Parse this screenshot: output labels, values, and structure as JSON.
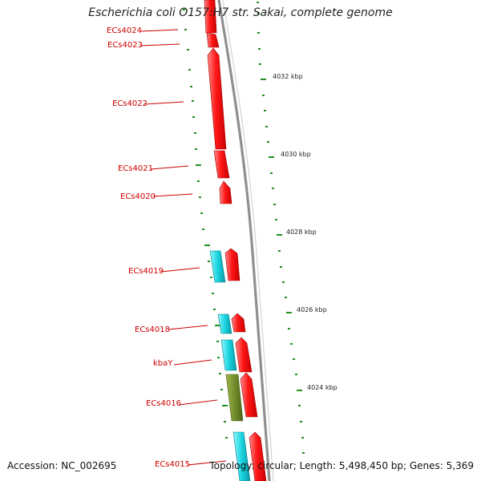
{
  "title": "Escherichia coli O157:H7 str. Sakai, complete genome",
  "footer": {
    "accession": "Accession: NC_002695",
    "topology": "Topology: circular; Length: 5,498,450 bp; Genes: 5,369"
  },
  "colors": {
    "forward_gene": "#ff1414",
    "reverse_gene": "#19d4df",
    "other_feature": "#6f8a2a",
    "label": "#cc0000",
    "tick": "#1f8f1f",
    "backbone": "#8f8f8f"
  },
  "scale_labels": [
    "4032 kbp",
    "4030 kbp",
    "4028 kbp",
    "4026 kbp",
    "4024 kbp"
  ],
  "gene_labels": [
    "ECs4024",
    "ECs4023",
    "ECs4022",
    "ECs4021",
    "ECs4020",
    "ECs4019",
    "ECs4018",
    "kbaY",
    "ECs4016",
    "ECs4015"
  ]
}
